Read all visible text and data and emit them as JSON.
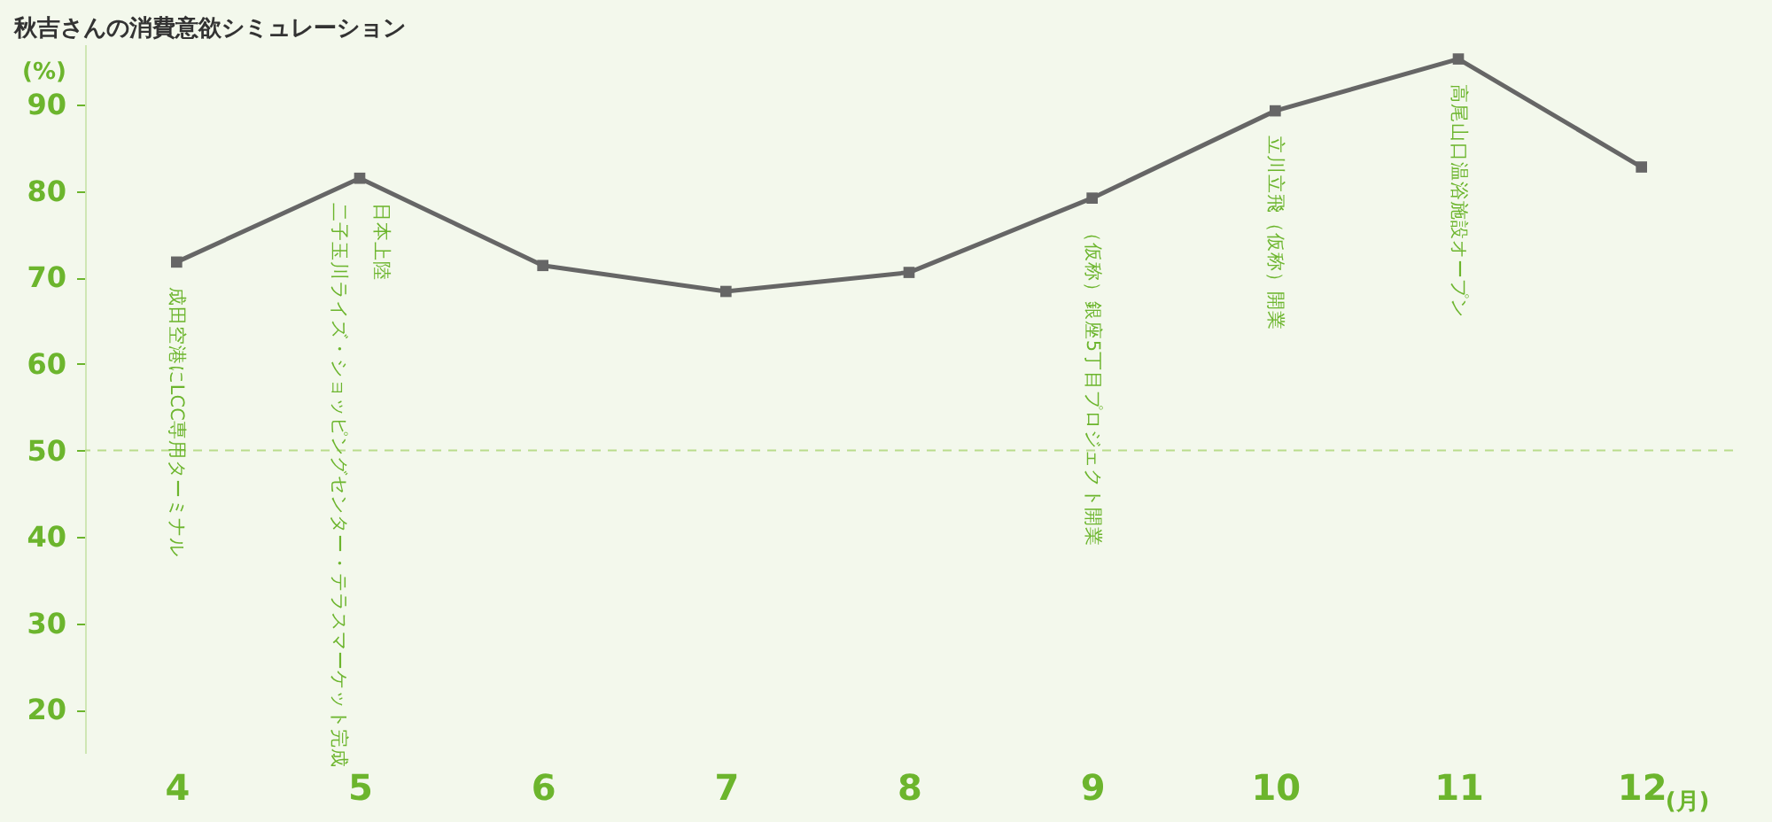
{
  "chart_data": {
    "type": "line",
    "title": "秋吉さんの消費意欲シミュレーション",
    "ylabel": "(%)",
    "xlabel": "(月)",
    "categories": [
      "4",
      "5",
      "6",
      "7",
      "8",
      "9",
      "10",
      "11",
      "12"
    ],
    "series": [
      {
        "color": "#666666",
        "values": [
          71.8,
          81.5,
          71.4,
          68.4,
          70.6,
          79.2,
          89.3,
          95.3,
          82.8
        ]
      }
    ],
    "ylim": [
      15,
      97
    ],
    "yticks": [
      20,
      30,
      40,
      50,
      60,
      70,
      80,
      90
    ],
    "ref_lines": [
      {
        "axis": "y",
        "value": 50,
        "color": "#b9dc8c",
        "line_style": "dashed"
      }
    ],
    "annotations": [
      {
        "text": "成田空港にLCC専用ターミナル",
        "x": "4",
        "y": 71.8
      },
      {
        "text": "二子玉川ライズ・ショッピングセンター・テラスマーケット完成",
        "x": "5",
        "y": 81.5
      },
      {
        "text": "日本上陸",
        "x": "5",
        "y": 81.5
      },
      {
        "text": "（仮称）銀座5丁目プロジェクト開業",
        "x": "9",
        "y": 79.2
      },
      {
        "text": "立川立飛（仮称）開業",
        "x": "10",
        "y": 89.3
      },
      {
        "text": "高尾山口温浴施設オープン",
        "x": "11",
        "y": 95.3
      }
    ],
    "marker": "square",
    "line_style": "solid",
    "grid": false
  }
}
